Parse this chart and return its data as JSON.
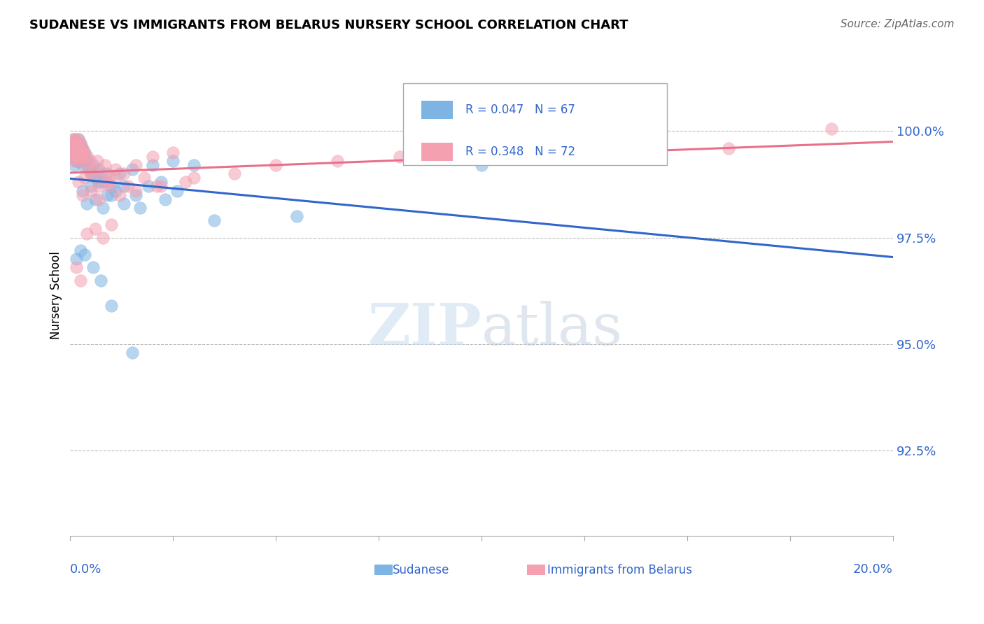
{
  "title": "SUDANESE VS IMMIGRANTS FROM BELARUS NURSERY SCHOOL CORRELATION CHART",
  "source": "Source: ZipAtlas.com",
  "ylabel": "Nursery School",
  "y_ticks": [
    92.5,
    95.0,
    97.5,
    100.0
  ],
  "x_range": [
    0.0,
    20.0
  ],
  "y_range": [
    90.5,
    101.8
  ],
  "legend_r_sudanese": "R = 0.047",
  "legend_n_sudanese": "N = 67",
  "legend_r_belarus": "R = 0.348",
  "legend_n_belarus": "N = 72",
  "color_sudanese": "#7EB4E3",
  "color_belarus": "#F4A0B0",
  "color_line_sudanese": "#3266CC",
  "color_line_belarus": "#E8708A",
  "color_text_blue": "#3266CC",
  "color_grid": "#BBBBBB",
  "sudanese_x": [
    0.05,
    0.08,
    0.1,
    0.12,
    0.15,
    0.18,
    0.2,
    0.22,
    0.25,
    0.28,
    0.1,
    0.12,
    0.15,
    0.18,
    0.2,
    0.22,
    0.25,
    0.28,
    0.3,
    0.35,
    0.1,
    0.15,
    0.2,
    0.25,
    0.3,
    0.35,
    0.4,
    0.45,
    0.5,
    0.55,
    0.6,
    0.7,
    0.8,
    0.9,
    1.0,
    1.2,
    1.5,
    2.0,
    2.5,
    3.0,
    0.3,
    0.5,
    0.7,
    0.9,
    1.1,
    1.3,
    1.6,
    1.9,
    2.2,
    2.6,
    0.4,
    0.6,
    0.8,
    1.0,
    1.3,
    1.7,
    2.3,
    3.5,
    5.5,
    10.0,
    0.15,
    0.25,
    0.35,
    0.55,
    0.75,
    1.0,
    1.5
  ],
  "sudanese_y": [
    99.6,
    99.7,
    99.8,
    99.5,
    99.7,
    99.6,
    99.8,
    99.5,
    99.7,
    99.6,
    99.4,
    99.5,
    99.3,
    99.6,
    99.4,
    99.5,
    99.3,
    99.6,
    99.4,
    99.5,
    99.2,
    99.4,
    99.3,
    99.5,
    99.2,
    99.4,
    99.3,
    99.1,
    99.0,
    99.2,
    98.9,
    99.1,
    98.8,
    99.0,
    98.7,
    99.0,
    99.1,
    99.2,
    99.3,
    99.2,
    98.6,
    98.7,
    98.8,
    98.5,
    98.6,
    98.7,
    98.5,
    98.7,
    98.8,
    98.6,
    98.3,
    98.4,
    98.2,
    98.5,
    98.3,
    98.2,
    98.4,
    97.9,
    98.0,
    99.2,
    97.0,
    97.2,
    97.1,
    96.8,
    96.5,
    95.9,
    94.8
  ],
  "belarus_x": [
    0.05,
    0.07,
    0.1,
    0.12,
    0.15,
    0.17,
    0.2,
    0.22,
    0.25,
    0.28,
    0.08,
    0.1,
    0.13,
    0.16,
    0.18,
    0.21,
    0.24,
    0.27,
    0.3,
    0.33,
    0.1,
    0.13,
    0.16,
    0.2,
    0.24,
    0.28,
    0.32,
    0.38,
    0.42,
    0.48,
    0.55,
    0.65,
    0.75,
    0.85,
    0.95,
    1.1,
    1.3,
    1.6,
    2.0,
    2.5,
    0.2,
    0.35,
    0.5,
    0.7,
    0.9,
    1.1,
    1.4,
    1.8,
    2.2,
    2.8,
    0.3,
    0.5,
    0.7,
    0.95,
    1.2,
    1.6,
    2.1,
    3.0,
    4.0,
    5.0,
    6.5,
    8.0,
    10.0,
    12.0,
    16.0,
    18.5,
    0.4,
    0.6,
    0.8,
    1.0,
    0.15,
    0.25
  ],
  "belarus_y": [
    99.7,
    99.8,
    99.6,
    99.8,
    99.7,
    99.5,
    99.8,
    99.6,
    99.7,
    99.5,
    99.4,
    99.6,
    99.5,
    99.7,
    99.4,
    99.6,
    99.5,
    99.4,
    99.6,
    99.5,
    99.3,
    99.5,
    99.4,
    99.6,
    99.3,
    99.5,
    99.4,
    99.2,
    99.4,
    99.3,
    99.1,
    99.3,
    99.0,
    99.2,
    98.9,
    99.1,
    99.0,
    99.2,
    99.4,
    99.5,
    98.8,
    98.9,
    99.0,
    98.7,
    98.8,
    98.9,
    98.7,
    98.9,
    98.7,
    98.8,
    98.5,
    98.6,
    98.4,
    98.7,
    98.5,
    98.6,
    98.7,
    98.9,
    99.0,
    99.2,
    99.3,
    99.4,
    99.4,
    99.5,
    99.6,
    100.05,
    97.6,
    97.7,
    97.5,
    97.8,
    96.8,
    96.5
  ]
}
